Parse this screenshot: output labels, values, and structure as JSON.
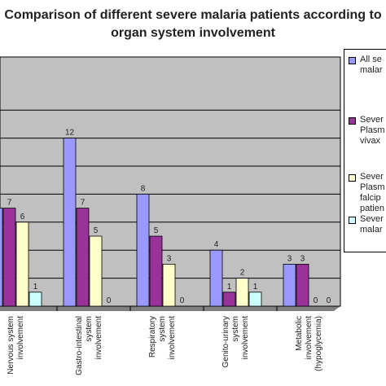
{
  "chart_data": {
    "type": "bar",
    "title": [
      "Comparison of different severe malaria patients according to",
      "organ system involvement"
    ],
    "categories": [
      [
        "Nervous system",
        "involvement"
      ],
      [
        "Gastro-intestinal",
        "system",
        "involvement"
      ],
      [
        "Respiratory",
        "system",
        "involvement"
      ],
      [
        "Genito-urinary",
        "system",
        "involvement"
      ],
      [
        "Metabolic",
        "involvement",
        "(hypoglycemia)"
      ]
    ],
    "series": [
      {
        "name": [
          "All se",
          "malar"
        ],
        "values": [
          7,
          12,
          8,
          4,
          3
        ],
        "color": "#9999ff"
      },
      {
        "name": [
          "Sever",
          "Plasm",
          "vivax"
        ],
        "values": [
          7,
          7,
          5,
          1,
          3
        ],
        "color": "#993399"
      },
      {
        "name": [
          "Sever",
          "Plasm",
          "falcip",
          "patien"
        ],
        "values": [
          6,
          5,
          3,
          2,
          0
        ],
        "color": "#ffffcc"
      },
      {
        "name": [
          "Sever",
          "malar"
        ],
        "values": [
          1,
          0,
          0,
          1,
          0
        ],
        "color": "#ccffff"
      }
    ],
    "ylim": [
      0,
      14
    ],
    "grid": true,
    "legend": "right",
    "plot_background": "#c0c0c0"
  }
}
